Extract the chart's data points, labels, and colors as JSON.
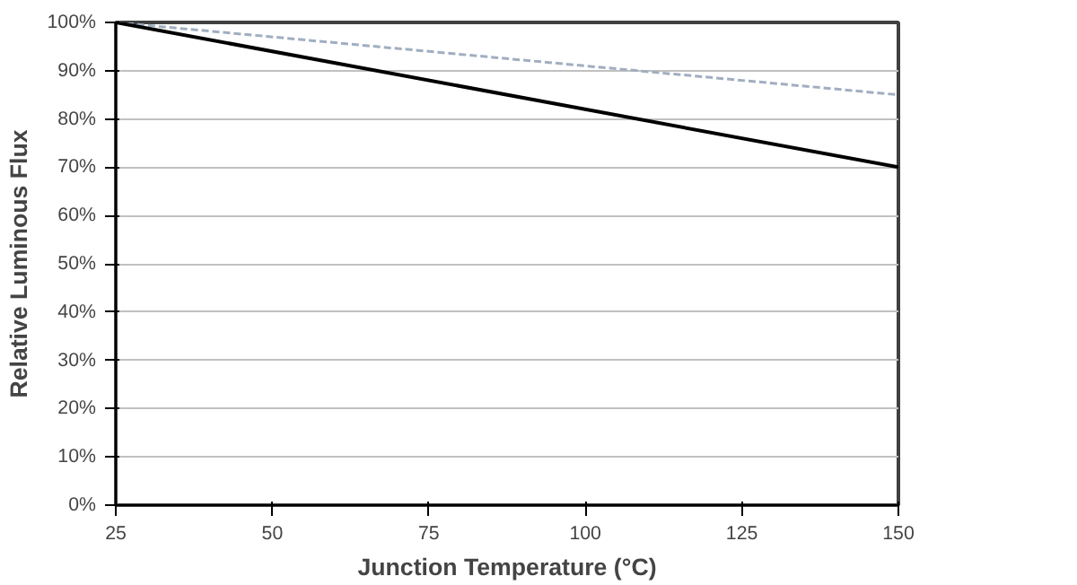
{
  "chart_data": {
    "type": "line",
    "xlabel": "Junction Temperature (°C)",
    "ylabel": "Relative Luminous Flux",
    "xlim": [
      25,
      150
    ],
    "xticks": [
      25,
      50,
      75,
      100,
      125,
      150
    ],
    "ylim": [
      0,
      100
    ],
    "yticks": [
      {
        "value": 0,
        "label": "0%"
      },
      {
        "value": 10,
        "label": "10%"
      },
      {
        "value": 20,
        "label": "20%"
      },
      {
        "value": 30,
        "label": "30%"
      },
      {
        "value": 40,
        "label": "40%"
      },
      {
        "value": 50,
        "label": "50%"
      },
      {
        "value": 60,
        "label": "60%"
      },
      {
        "value": 70,
        "label": "70%"
      },
      {
        "value": 80,
        "label": "80%"
      },
      {
        "value": 90,
        "label": "90%"
      },
      {
        "value": 100,
        "label": "100%"
      }
    ],
    "grid": "y",
    "x": [
      25,
      150
    ],
    "series": [
      {
        "values": [
          100,
          85
        ],
        "color": "#a0aec0",
        "line_style": "dashed"
      },
      {
        "values": [
          100,
          70
        ],
        "color": "#000000",
        "line_style": "solid"
      }
    ]
  }
}
